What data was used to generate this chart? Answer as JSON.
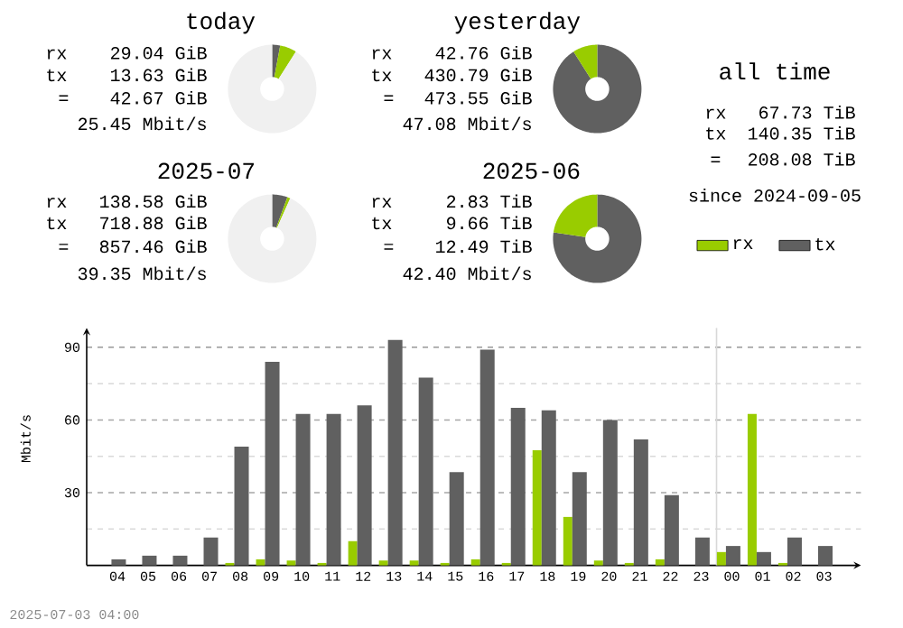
{
  "chart_data": [
    {
      "type": "donut",
      "title": "today",
      "categories": [
        null,
        null,
        null
      ],
      "values": [
        2.9,
        6.1,
        91.0
      ],
      "colors": [
        "#606060",
        "#99cc00",
        "#f0f0f0"
      ],
      "annotations": [
        "rx",
        "29.04 GiB",
        "tx",
        "13.63 GiB",
        "=",
        "42.67 GiB",
        "25.45 Mbit/s"
      ]
    },
    {
      "type": "donut",
      "title": "yesterday",
      "categories": [
        null,
        null
      ],
      "values": [
        91.0,
        9.0
      ],
      "colors": [
        "#606060",
        "#99cc00"
      ],
      "annotations": [
        "rx",
        "42.76 GiB",
        "tx",
        "430.79 GiB",
        "=",
        "473.55 GiB",
        "47.08 Mbit/s"
      ]
    },
    {
      "type": "other",
      "title": "all time",
      "annotations": [
        "rx",
        "67.73 TiB",
        "tx",
        "140.35 TiB",
        "=",
        "208.08 TiB",
        "since 2024-09-05"
      ]
    },
    {
      "type": "donut",
      "title": "2025-07",
      "categories": [
        null,
        null,
        null
      ],
      "values": [
        5.6,
        1.1,
        93.3
      ],
      "colors": [
        "#606060",
        "#99cc00",
        "#f0f0f0"
      ],
      "annotations": [
        "rx",
        "138.58 GiB",
        "tx",
        "718.88 GiB",
        "=",
        "857.46 GiB",
        "39.35 Mbit/s"
      ]
    },
    {
      "type": "donut",
      "title": "2025-06",
      "categories": [
        null,
        null
      ],
      "values": [
        77.3,
        22.7
      ],
      "colors": [
        "#606060",
        "#99cc00"
      ],
      "annotations": [
        "rx",
        "2.83 TiB",
        "tx",
        "9.66 TiB",
        "=",
        "12.49 TiB",
        "42.40 Mbit/s"
      ]
    },
    {
      "type": "bar",
      "ylabel": "Mbit/s",
      "categories": [
        "04",
        "05",
        "06",
        "07",
        "08",
        "09",
        "10",
        "11",
        "12",
        "13",
        "14",
        "15",
        "16",
        "17",
        "18",
        "19",
        "20",
        "21",
        "22",
        "23",
        "00",
        "01",
        "02",
        "03"
      ],
      "series": [
        {
          "name": "rx",
          "color": "#99cc00",
          "values": [
            0,
            0,
            0,
            0,
            1,
            2.5,
            2,
            1,
            10,
            2,
            2,
            1,
            2.5,
            1,
            47.5,
            20,
            2,
            1,
            2.5,
            0,
            5.5,
            62.5,
            1,
            0
          ]
        },
        {
          "name": "tx",
          "color": "#606060",
          "values": [
            2.5,
            4,
            4,
            11.5,
            49,
            84,
            62.5,
            62.5,
            66,
            93,
            77.5,
            38.5,
            89,
            65,
            64,
            38.5,
            60,
            52,
            29,
            11.5,
            8,
            5.5,
            11.5,
            8
          ]
        }
      ],
      "ylim": [
        0,
        98
      ],
      "yticks": [
        {
          "value": 15,
          "label": null
        },
        30,
        {
          "value": 45,
          "label": null
        },
        60,
        {
          "value": 75,
          "label": null
        },
        90
      ],
      "grid": "y",
      "legend": "top right",
      "ref_lines": [
        {
          "axis": "x",
          "value": "00",
          "color": "#d8d8d8"
        }
      ],
      "annotations": [
        "2025-07-03 04:00"
      ]
    }
  ]
}
